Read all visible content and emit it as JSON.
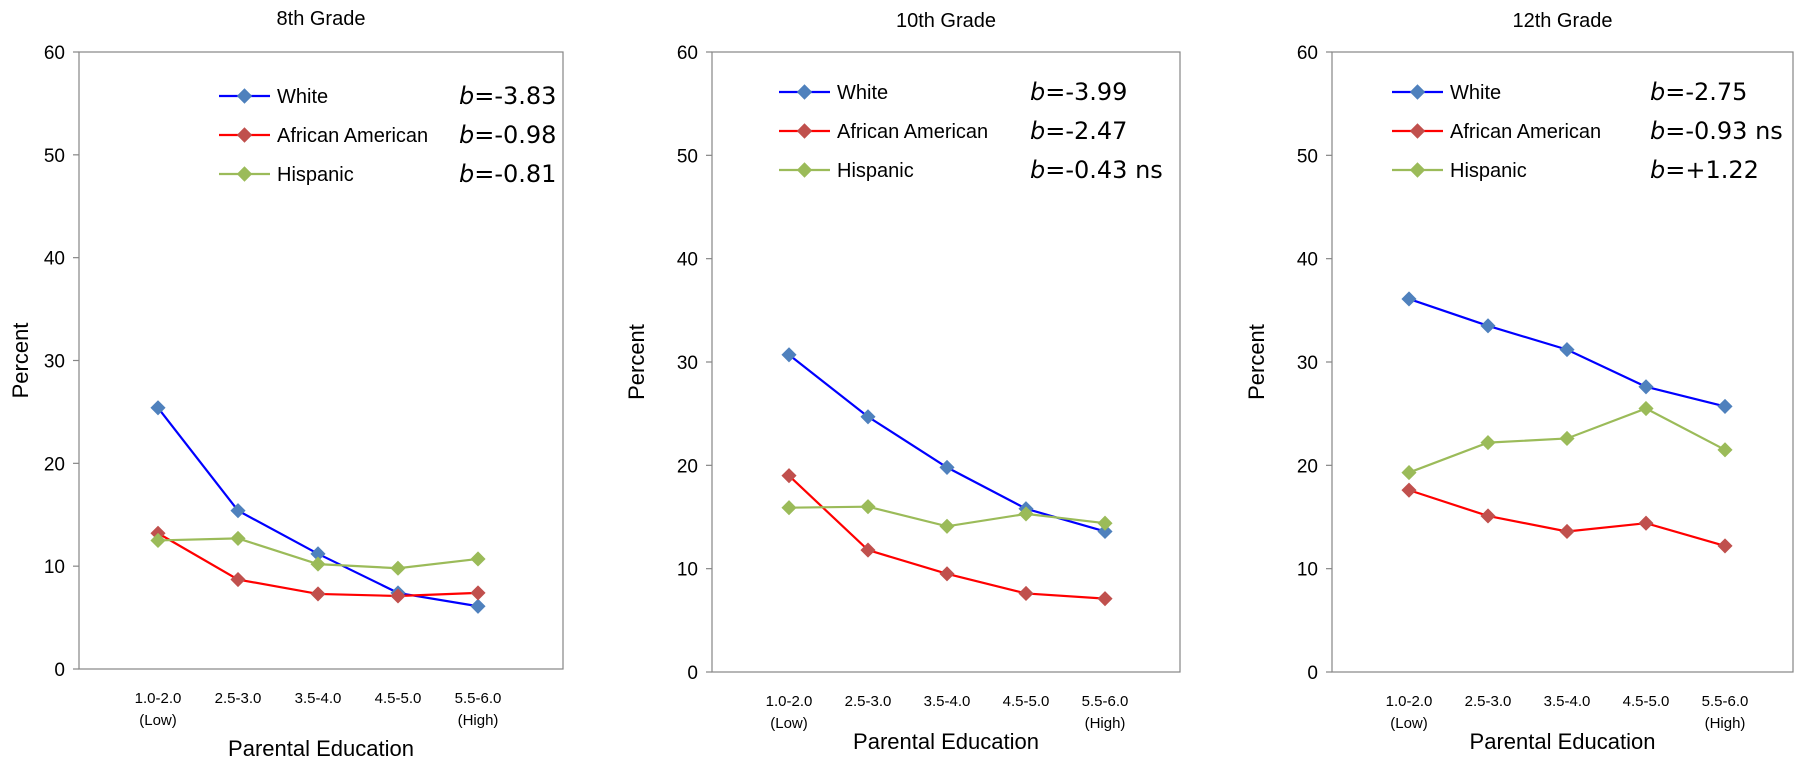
{
  "chart_data": [
    {
      "type": "line",
      "title": "8th Grade",
      "xlabel": "Parental Education",
      "ylabel": "Percent",
      "ylim": [
        0,
        60
      ],
      "yticks": [
        0,
        10,
        20,
        30,
        40,
        50,
        60
      ],
      "grid": false,
      "legend": "top-right",
      "categories": [
        {
          "line1": "1.0-2.0",
          "line2": "(Low)"
        },
        {
          "line1": "2.5-3.0",
          "line2": ""
        },
        {
          "line1": "3.5-4.0",
          "line2": ""
        },
        {
          "line1": "4.5-5.0",
          "line2": ""
        },
        {
          "line1": "5.5-6.0",
          "line2": "(High)"
        }
      ],
      "series": [
        {
          "name": "White",
          "color": "#0000ff",
          "marker_color": "#4f81bd",
          "values": [
            25.4,
            15.4,
            11.2,
            7.4,
            6.1
          ],
          "coef_b": "b",
          "coef_rest": "=-3.83"
        },
        {
          "name": "African American",
          "color": "#ff0000",
          "marker_color": "#c0504d",
          "values": [
            13.2,
            8.7,
            7.3,
            7.1,
            7.4
          ],
          "coef_b": "b",
          "coef_rest": "=-0.98"
        },
        {
          "name": "Hispanic",
          "color": "#9bbb59",
          "marker_color": "#9bbb59",
          "values": [
            12.5,
            12.7,
            10.2,
            9.8,
            10.7
          ],
          "coef_b": "b",
          "coef_rest": "=-0.81"
        }
      ]
    },
    {
      "type": "line",
      "title": "10th Grade",
      "xlabel": "Parental Education",
      "ylabel": "Percent",
      "ylim": [
        0,
        60
      ],
      "yticks": [
        0,
        10,
        20,
        30,
        40,
        50,
        60
      ],
      "grid": false,
      "legend": "top",
      "categories": [
        {
          "line1": "1.0-2.0",
          "line2": "(Low)"
        },
        {
          "line1": "2.5-3.0",
          "line2": ""
        },
        {
          "line1": "3.5-4.0",
          "line2": ""
        },
        {
          "line1": "4.5-5.0",
          "line2": ""
        },
        {
          "line1": "5.5-6.0",
          "line2": "(High)"
        }
      ],
      "series": [
        {
          "name": "White",
          "color": "#0000ff",
          "marker_color": "#4f81bd",
          "values": [
            30.7,
            24.7,
            19.8,
            15.8,
            13.6
          ],
          "coef_b": "b",
          "coef_rest": "=-3.99"
        },
        {
          "name": "African American",
          "color": "#ff0000",
          "marker_color": "#c0504d",
          "values": [
            19.0,
            11.8,
            9.5,
            7.6,
            7.1
          ],
          "coef_b": "b",
          "coef_rest": "=-2.47"
        },
        {
          "name": "Hispanic",
          "color": "#9bbb59",
          "marker_color": "#9bbb59",
          "values": [
            15.9,
            16.0,
            14.1,
            15.3,
            14.4
          ],
          "coef_b": "b",
          "coef_rest": "=-0.43 ns"
        }
      ]
    },
    {
      "type": "line",
      "title": "12th Grade",
      "xlabel": "Parental Education",
      "ylabel": "Percent",
      "ylim": [
        0,
        60
      ],
      "yticks": [
        0,
        10,
        20,
        30,
        40,
        50,
        60
      ],
      "grid": false,
      "legend": "top",
      "categories": [
        {
          "line1": "1.0-2.0",
          "line2": "(Low)"
        },
        {
          "line1": "2.5-3.0",
          "line2": ""
        },
        {
          "line1": "3.5-4.0",
          "line2": ""
        },
        {
          "line1": "4.5-5.0",
          "line2": ""
        },
        {
          "line1": "5.5-6.0",
          "line2": "(High)"
        }
      ],
      "series": [
        {
          "name": "White",
          "color": "#0000ff",
          "marker_color": "#4f81bd",
          "values": [
            36.1,
            33.5,
            31.2,
            27.6,
            25.7
          ],
          "coef_b": "b",
          "coef_rest": "=-2.75"
        },
        {
          "name": "African American",
          "color": "#ff0000",
          "marker_color": "#c0504d",
          "values": [
            17.6,
            15.1,
            13.6,
            14.4,
            12.2
          ],
          "coef_b": "b",
          "coef_rest": "=-0.93 ns"
        },
        {
          "name": "Hispanic",
          "color": "#9bbb59",
          "marker_color": "#9bbb59",
          "values": [
            19.3,
            22.2,
            22.6,
            25.5,
            21.5
          ],
          "coef_b": "b",
          "coef_rest": "=+1.22"
        }
      ]
    }
  ]
}
